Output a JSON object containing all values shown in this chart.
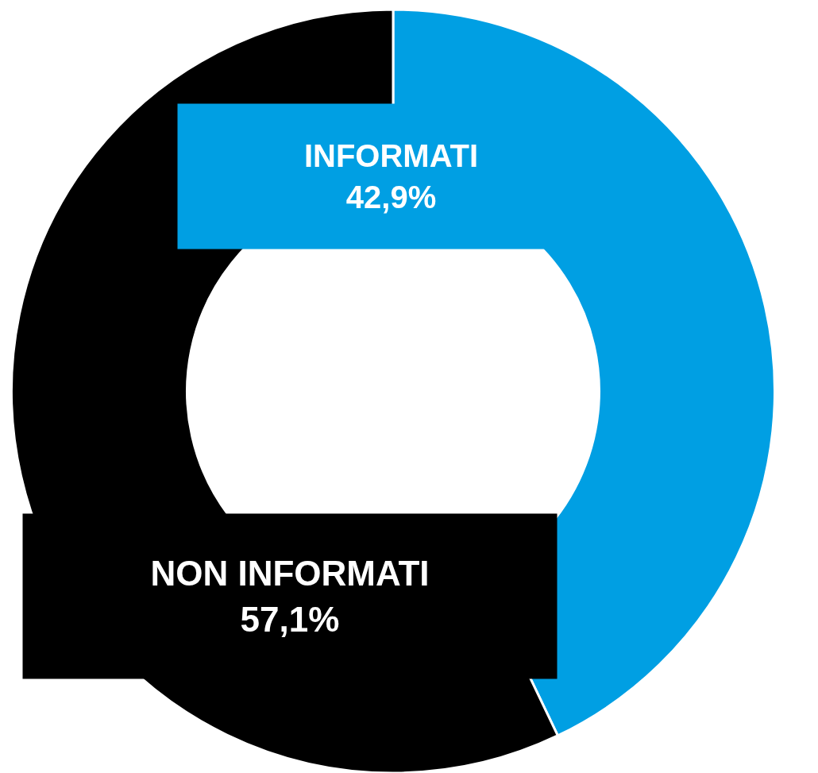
{
  "chart_data": {
    "type": "donut",
    "categories": [
      "INFORMATI",
      "NON INFORMATI"
    ],
    "values": [
      42.9,
      57.1
    ],
    "colors": [
      "#009fe3",
      "#000000"
    ],
    "value_labels": [
      "42,9%",
      "57,1%"
    ],
    "legend": false
  }
}
